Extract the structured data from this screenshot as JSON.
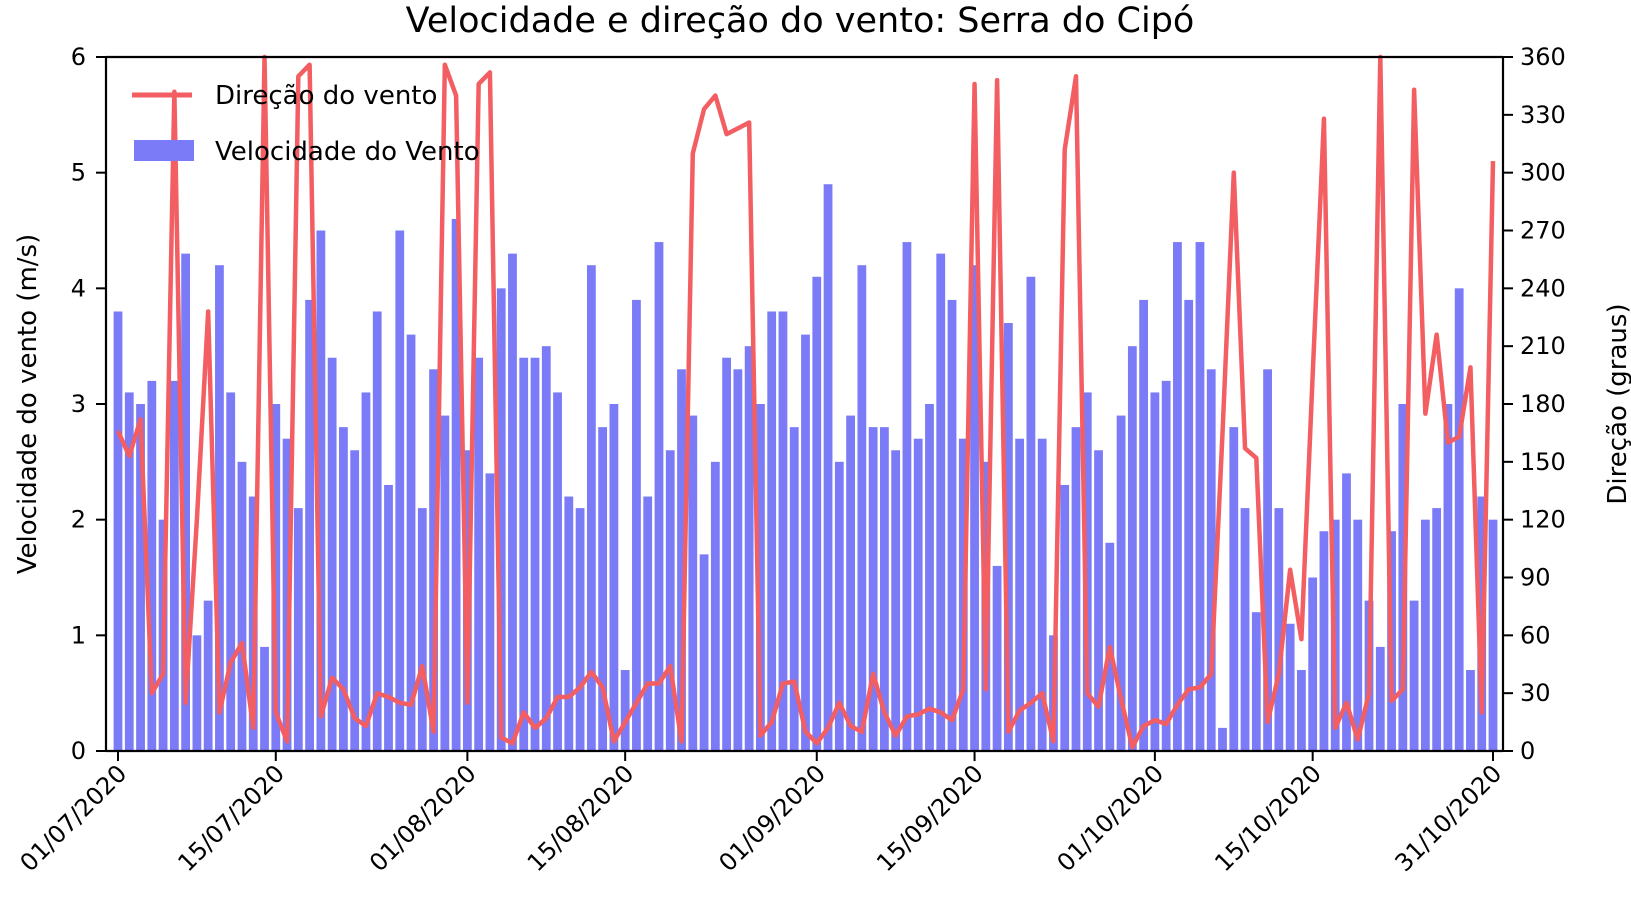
{
  "chart_data": {
    "type": "bar+line",
    "title": "Velocidade e direção do vento: Serra do Cipó",
    "ylabel_left": "Velocidade do vento (m/s)",
    "ylabel_right": "Direção (graus)",
    "ylim_left": [
      0,
      6
    ],
    "ylim_right": [
      0,
      360
    ],
    "yticks_left": [
      "0",
      "1",
      "2",
      "3",
      "4",
      "5",
      "6"
    ],
    "yticks_right": [
      "0",
      "30",
      "60",
      "90",
      "120",
      "150",
      "180",
      "210",
      "240",
      "270",
      "300",
      "330",
      "360"
    ],
    "xlim_dates": [
      "2020-07-01",
      "2020-10-31"
    ],
    "xticks": [
      {
        "date": "2020-07-01",
        "label": "01/07/2020"
      },
      {
        "date": "2020-07-15",
        "label": "15/07/2020"
      },
      {
        "date": "2020-08-01",
        "label": "01/08/2020"
      },
      {
        "date": "2020-08-15",
        "label": "15/08/2020"
      },
      {
        "date": "2020-09-01",
        "label": "01/09/2020"
      },
      {
        "date": "2020-09-15",
        "label": "15/09/2020"
      },
      {
        "date": "2020-10-01",
        "label": "01/10/2020"
      },
      {
        "date": "2020-10-15",
        "label": "15/10/2020"
      },
      {
        "date": "2020-10-31",
        "label": "31/10/2020"
      }
    ],
    "legend_position": "top-left",
    "grid": false,
    "series": [
      {
        "name": "Velocidade do Vento",
        "kind": "bar",
        "axis": "left",
        "color": "#7b7bf7",
        "values": [
          3.8,
          3.1,
          3.0,
          3.2,
          2.0,
          3.2,
          4.3,
          1.0,
          1.3,
          4.2,
          3.1,
          2.5,
          2.2,
          0.9,
          3.0,
          2.7,
          2.1,
          3.9,
          4.5,
          3.4,
          2.8,
          2.6,
          3.1,
          3.8,
          2.3,
          4.5,
          3.6,
          2.1,
          3.3,
          2.9,
          4.6,
          2.6,
          3.4,
          2.4,
          4.0,
          4.3,
          3.4,
          3.4,
          3.5,
          3.1,
          2.2,
          2.1,
          4.2,
          2.8,
          3.0,
          0.7,
          3.9,
          2.2,
          4.4,
          2.6,
          3.3,
          2.9,
          1.7,
          2.5,
          3.4,
          3.3,
          3.5,
          3.0,
          3.8,
          3.8,
          2.8,
          3.6,
          4.1,
          4.9,
          2.5,
          2.9,
          4.2,
          2.8,
          2.8,
          2.6,
          4.4,
          2.7,
          3.0,
          4.3,
          3.9,
          2.7,
          4.2,
          2.5,
          1.6,
          3.7,
          2.7,
          4.1,
          2.7,
          1.0,
          2.3,
          2.8,
          3.1,
          2.6,
          1.8,
          2.9,
          3.5,
          3.9,
          3.1,
          3.2,
          4.4,
          3.9,
          4.4,
          3.3,
          0.2,
          2.8,
          2.1,
          1.2,
          3.3,
          2.1,
          1.1,
          0.7,
          1.5,
          1.9,
          2.0,
          2.4,
          2.0,
          1.3,
          0.9,
          1.9,
          3.0,
          1.3,
          2.0,
          2.1,
          3.0,
          4.0,
          0.7,
          2.2,
          2.0
        ]
      },
      {
        "name": "Direção do vento",
        "kind": "line",
        "axis": "right",
        "color": "#f25e62",
        "values": [
          166,
          153,
          172,
          30,
          40,
          342,
          25,
          120,
          228,
          20,
          46,
          56,
          12,
          360,
          20,
          5,
          350,
          356,
          18,
          38,
          32,
          17,
          13,
          30,
          28,
          25,
          24,
          44,
          10,
          356,
          340,
          25,
          346,
          352,
          7,
          4,
          20,
          12,
          17,
          28,
          28,
          33,
          41,
          33,
          5,
          15,
          25,
          35,
          35,
          44,
          5,
          310,
          333,
          340,
          320,
          323,
          326,
          8,
          15,
          35,
          36,
          10,
          4,
          12,
          25,
          13,
          10,
          40,
          20,
          8,
          18,
          19,
          22,
          20,
          16,
          32,
          346,
          32,
          348,
          10,
          21,
          25,
          30,
          5,
          312,
          350,
          30,
          23,
          54,
          27,
          2,
          13,
          16,
          14,
          24,
          32,
          33,
          40,
          165,
          300,
          157,
          152,
          15,
          40,
          94,
          58,
          195,
          328,
          12,
          25,
          6,
          30,
          360,
          26,
          32,
          343,
          175,
          216,
          160,
          163,
          199,
          20,
          306
        ]
      }
    ]
  }
}
